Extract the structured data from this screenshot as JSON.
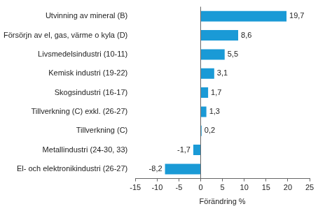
{
  "chart_data": {
    "type": "bar",
    "orientation": "horizontal",
    "categories": [
      "Utvinning av mineral (B)",
      "Försörjn av el, gas, värme o kyla (D)",
      "Livsmedelsindustri (10-11)",
      "Kemisk industri (19-22)",
      "Skogsindustri (16-17)",
      "Tillverkning (C) exkl. (26-27)",
      "Tillverkning (C)",
      "Metallindustri (24-30, 33)",
      "El- och elektronikindustri (26-27)"
    ],
    "values": [
      19.7,
      8.6,
      5.5,
      3.1,
      1.7,
      1.3,
      0.2,
      -1.7,
      -8.2
    ],
    "value_labels": [
      "19,7",
      "8,6",
      "5,5",
      "3,1",
      "1,7",
      "1,3",
      "0,2",
      "-1,7",
      "-8,2"
    ],
    "data_labels": true,
    "color": "#1a9ad6",
    "xlabel": "Förändring %",
    "xlim": [
      -15,
      25
    ],
    "xticks": [
      -15,
      -10,
      -5,
      0,
      5,
      10,
      15,
      20,
      25
    ],
    "grid": false
  }
}
